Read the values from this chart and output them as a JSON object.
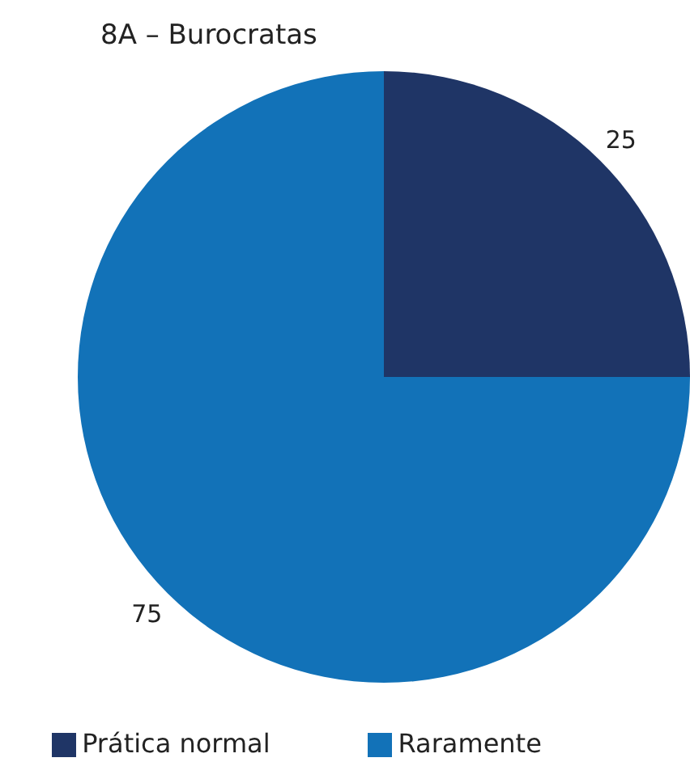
{
  "chart_data": {
    "type": "pie",
    "title": "8A – Burocratas",
    "categories": [
      "Prática normal",
      "Raramente"
    ],
    "values": [
      25,
      75
    ],
    "colors": [
      "#1f3566",
      "#1272b8"
    ],
    "data_labels": true,
    "legend": "bottom"
  }
}
